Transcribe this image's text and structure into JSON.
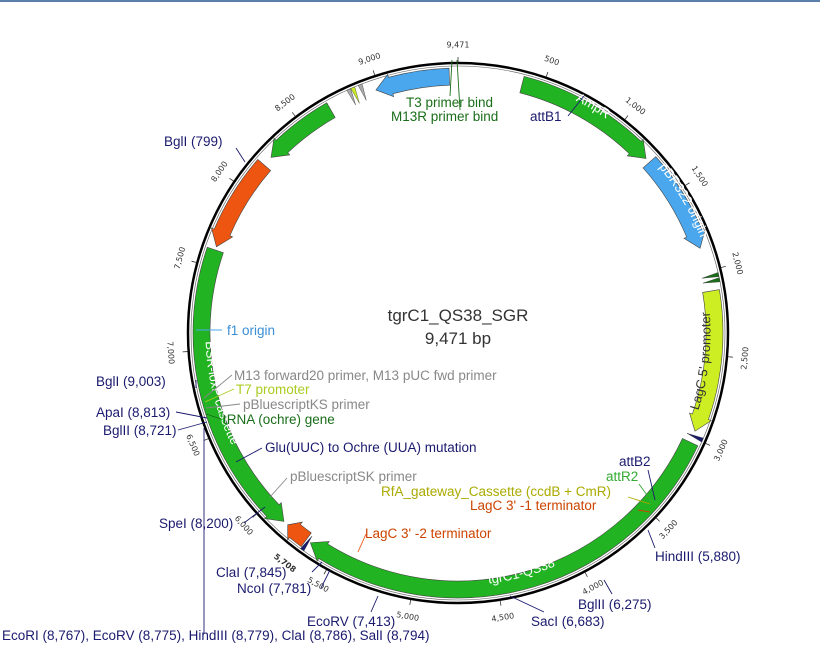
{
  "title": "tgrC1_QS38_SGR",
  "size": "9,471 bp",
  "total_bp": 9471,
  "colors": {
    "green": "#22b322",
    "dark_green": "#1a6e1a",
    "blue": "#4aa7ee",
    "orange": "#ee5511",
    "yellow_green": "#ccee22",
    "navy": "#1a1a6e",
    "gray": "#888888"
  },
  "features": [
    {
      "name": "AmpR",
      "start": 380,
      "end": 1240,
      "dir": 1,
      "color": "#22b322",
      "label": "AmpR"
    },
    {
      "name": "pBR322 origin",
      "start": 1270,
      "end": 1860,
      "dir": 1,
      "color": "#4aa7ee",
      "label": "pBR322 origin"
    },
    {
      "name": "LagC 5' promoter",
      "start": 2120,
      "end": 2960,
      "dir": 1,
      "color": "#ccee22",
      "label": "LagC 5' promoter"
    },
    {
      "name": "tgrC1-QS38",
      "start": 3030,
      "end": 5660,
      "dir": 1,
      "color": "#22b322",
      "label": "tgrC1-QS38"
    },
    {
      "name": "BSR-loxP cassette",
      "start": 5860,
      "end": 7600,
      "dir": -1,
      "color": "#22b322",
      "label": "BSR-loxP cassette"
    },
    {
      "name": "LagC 3' -2 terminator",
      "start": 7620,
      "end": 8180,
      "dir": -1,
      "color": "#ee5511",
      "label": ""
    },
    {
      "name": "tRNA (ochre) gene",
      "start": 8240,
      "end": 8690,
      "dir": -1,
      "color": "#22b322",
      "label": ""
    },
    {
      "name": "f1 origin",
      "start": 8980,
      "end": 9420,
      "dir": -1,
      "color": "#4aa7ee",
      "label": ""
    },
    {
      "name": "LagC 3' -1 terminator",
      "start": 5690,
      "end": 5830,
      "dir": 1,
      "color": "#ee5511",
      "label": ""
    }
  ],
  "small_marks": [
    {
      "name": "attB1",
      "pos": 2990,
      "color": "#1a1a6e"
    },
    {
      "name": "T3 primer bind",
      "pos": 2035,
      "color": "#1a6e1a"
    },
    {
      "name": "M13R primer bind",
      "pos": 2065,
      "color": "#1a6e1a"
    },
    {
      "name": "attB2",
      "pos": 5675,
      "color": "#1a1a6e"
    },
    {
      "name": "T7 promoter",
      "pos": 8860,
      "color": "#ccee22"
    },
    {
      "name": "M13 forward20 primer",
      "pos": 8905,
      "color": "#aaaaaa"
    },
    {
      "name": "pBluescriptKS primer",
      "pos": 8835,
      "color": "#aaaaaa"
    }
  ],
  "tick_labels": [
    "500",
    "1,000",
    "1,500",
    "2,000",
    "2,500",
    "3,000",
    "3,500",
    "4,000",
    "4,500",
    "5,000",
    "5,500",
    "6,000",
    "6,500",
    "7,000",
    "7,500",
    "8,000",
    "8,500",
    "9,000",
    "9,471"
  ],
  "tick_positions": [
    500,
    1000,
    1500,
    2000,
    2500,
    3000,
    3500,
    4000,
    4500,
    5000,
    5500,
    6000,
    6500,
    7000,
    7500,
    8000,
    8500,
    9000,
    9471
  ],
  "blue_tick": "5,708",
  "labels": {
    "f1_origin": "f1 origin",
    "t3_primer": "T3 primer bind",
    "m13r_primer": "M13R primer bind",
    "attb1": "attB1",
    "m13_fwd": "M13 forward20 primer, M13 pUC fwd primer",
    "t7_promoter": "T7 promoter",
    "pbks_primer": "pBluescriptKS primer",
    "trna_gene": "tRNA (ochre) gene",
    "glu_mutation": "Glu(UUC) to Ochre (UUA) mutation",
    "pbsk_primer": "pBluescriptSK primer",
    "attb2": "attB2",
    "attr2": "attR2",
    "rfa_cassette": "RfA_gateway_Cassette (ccdB + CmR)",
    "lagc3_1": "LagC 3' -1 terminator",
    "lagc3_2": "LagC 3' -2 terminator"
  },
  "enzymes": {
    "bgli_799": "BglI (799)",
    "bgli_9003": "BglI (9,003)",
    "apai": "ApaI (8,813)",
    "bglii_8721": "BglII (8,721)",
    "spei": "SpeI (8,200)",
    "clai_7845": "ClaI (7,845)",
    "ncoi": "NcoI (7,781)",
    "ecorv_7413": "EcoRV (7,413)",
    "saci": "SacI (6,683)",
    "bglii_6275": "BglII (6,275)",
    "hindiii_5880": "HindIII (5,880)",
    "multi": "EcoRI (8,767), EcoRV (8,775), HindIII (8,779), ClaI (8,786), SalI (8,794)"
  }
}
